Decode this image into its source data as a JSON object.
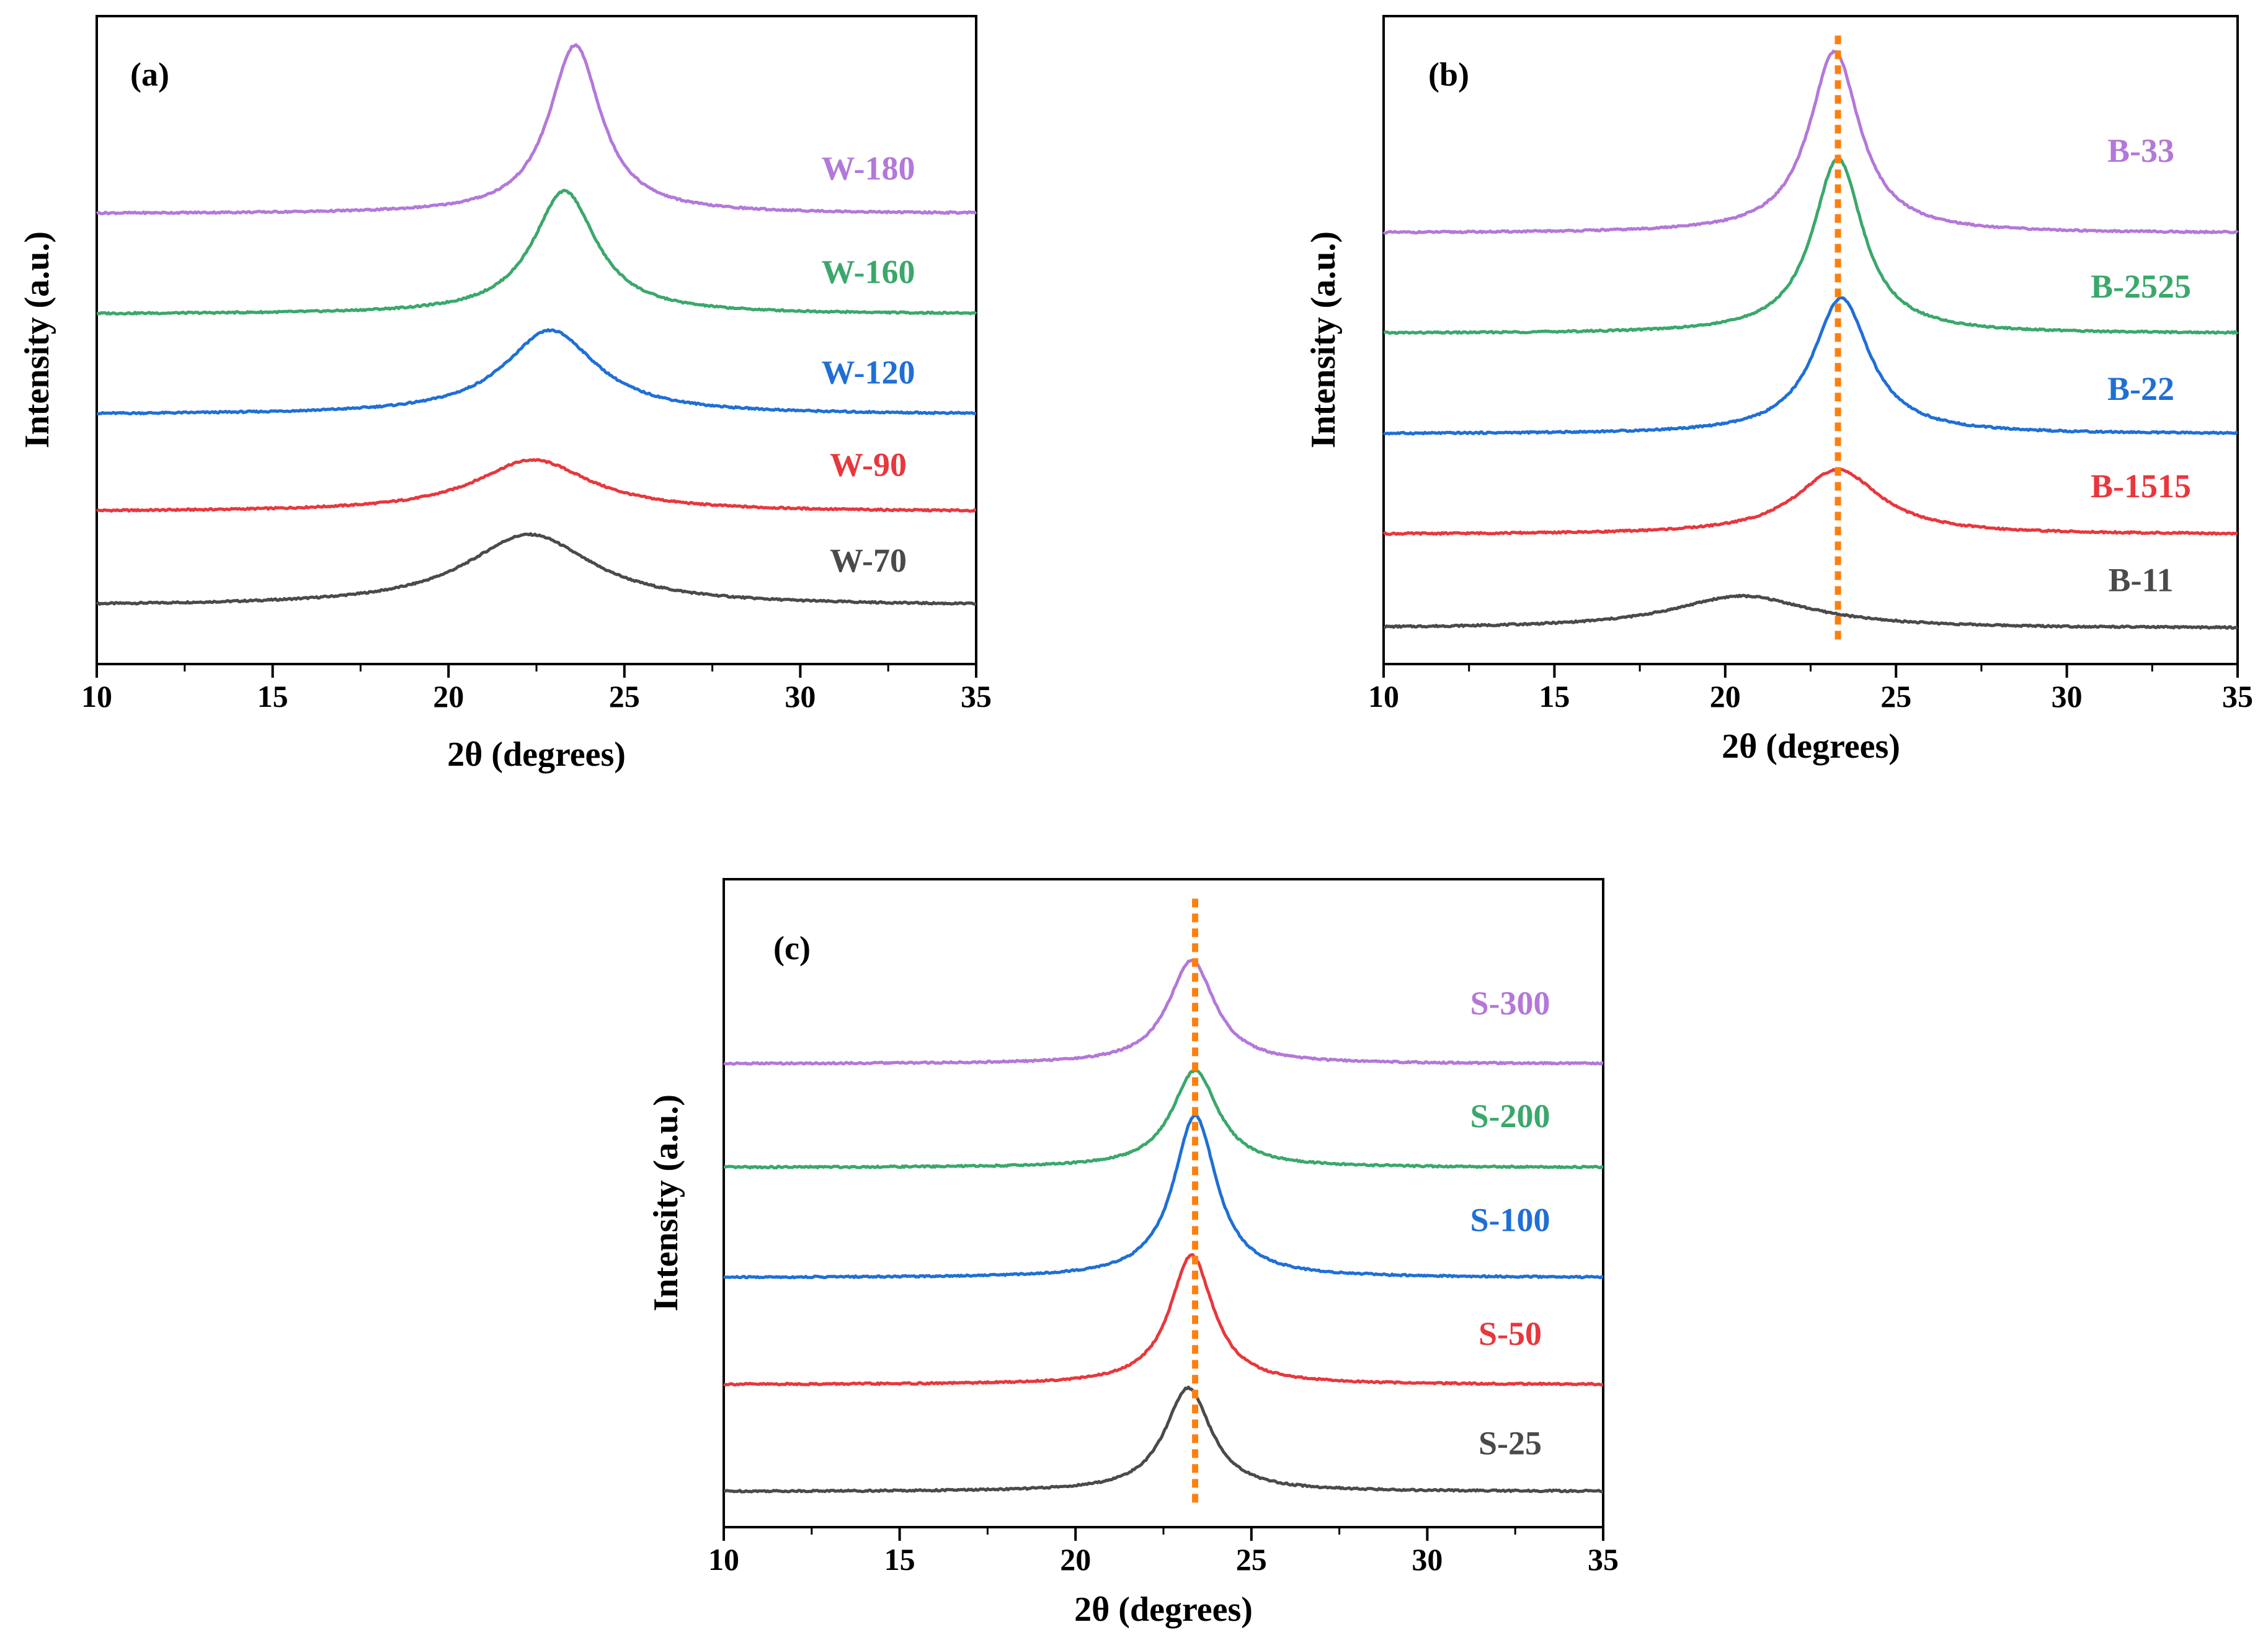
{
  "figure": {
    "colors": {
      "purple": "#b378d9",
      "green": "#3aa86b",
      "blue": "#1f6fd6",
      "red": "#e8373d",
      "gray": "#4a4a4a",
      "orange": "#ff7f0e"
    }
  },
  "chart_data": [
    {
      "type": "line",
      "panel_label": "(a)",
      "xlabel": "2θ (degrees)",
      "ylabel": "Intensity (a.u.)",
      "xlim": [
        10,
        35
      ],
      "xticks": [
        "10",
        "15",
        "20",
        "25",
        "30",
        "35"
      ],
      "ylim": [
        0,
        1
      ],
      "reference_line_x": null,
      "series": [
        {
          "name": "W-70",
          "color": "#4a4a4a",
          "baseline": 0.09,
          "peak_x": 22.3,
          "height": 0.11,
          "width": 2.2
        },
        {
          "name": "W-90",
          "color": "#e8373d",
          "baseline": 0.235,
          "peak_x": 22.4,
          "height": 0.08,
          "width": 2.0
        },
        {
          "name": "W-120",
          "color": "#1f6fd6",
          "baseline": 0.385,
          "peak_x": 22.9,
          "height": 0.13,
          "width": 1.6
        },
        {
          "name": "W-160",
          "color": "#3aa86b",
          "baseline": 0.54,
          "peak_x": 23.3,
          "height": 0.19,
          "width": 1.1
        },
        {
          "name": "W-180",
          "color": "#b378d9",
          "baseline": 0.695,
          "peak_x": 23.6,
          "height": 0.26,
          "width": 0.9
        }
      ]
    },
    {
      "type": "line",
      "panel_label": "(b)",
      "xlabel": "2θ (degrees)",
      "ylabel": "Intensity (a.u.)",
      "xlim": [
        10,
        35
      ],
      "xticks": [
        "10",
        "15",
        "20",
        "25",
        "30",
        "35"
      ],
      "ylim": [
        0,
        1
      ],
      "reference_line_x": 23.3,
      "series": [
        {
          "name": "B-11",
          "color": "#4a4a4a",
          "baseline": 0.055,
          "peak_x": 20.5,
          "height": 0.05,
          "width": 2.5
        },
        {
          "name": "B-1515",
          "color": "#e8373d",
          "baseline": 0.2,
          "peak_x": 23.3,
          "height": 0.1,
          "width": 1.5
        },
        {
          "name": "B-22",
          "color": "#1f6fd6",
          "baseline": 0.355,
          "peak_x": 23.4,
          "height": 0.21,
          "width": 1.0
        },
        {
          "name": "B-2525",
          "color": "#3aa86b",
          "baseline": 0.51,
          "peak_x": 23.3,
          "height": 0.27,
          "width": 0.9
        },
        {
          "name": "B-33",
          "color": "#b378d9",
          "baseline": 0.665,
          "peak_x": 23.2,
          "height": 0.28,
          "width": 0.9
        }
      ]
    },
    {
      "type": "line",
      "panel_label": "(c)",
      "xlabel": "2θ (degrees)",
      "ylabel": "Intensity (a.u.)",
      "xlim": [
        10,
        35
      ],
      "xticks": [
        "10",
        "15",
        "20",
        "25",
        "30",
        "35"
      ],
      "ylim": [
        0,
        1
      ],
      "reference_line_x": 23.4,
      "series": [
        {
          "name": "S-25",
          "color": "#4a4a4a",
          "baseline": 0.055,
          "peak_x": 23.2,
          "height": 0.16,
          "width": 0.8
        },
        {
          "name": "S-50",
          "color": "#e8373d",
          "baseline": 0.22,
          "peak_x": 23.3,
          "height": 0.2,
          "width": 0.75
        },
        {
          "name": "S-100",
          "color": "#1f6fd6",
          "baseline": 0.385,
          "peak_x": 23.4,
          "height": 0.25,
          "width": 0.75
        },
        {
          "name": "S-200",
          "color": "#3aa86b",
          "baseline": 0.555,
          "peak_x": 23.4,
          "height": 0.15,
          "width": 0.8
        },
        {
          "name": "S-300",
          "color": "#b378d9",
          "baseline": 0.715,
          "peak_x": 23.3,
          "height": 0.16,
          "width": 0.8
        }
      ]
    }
  ]
}
